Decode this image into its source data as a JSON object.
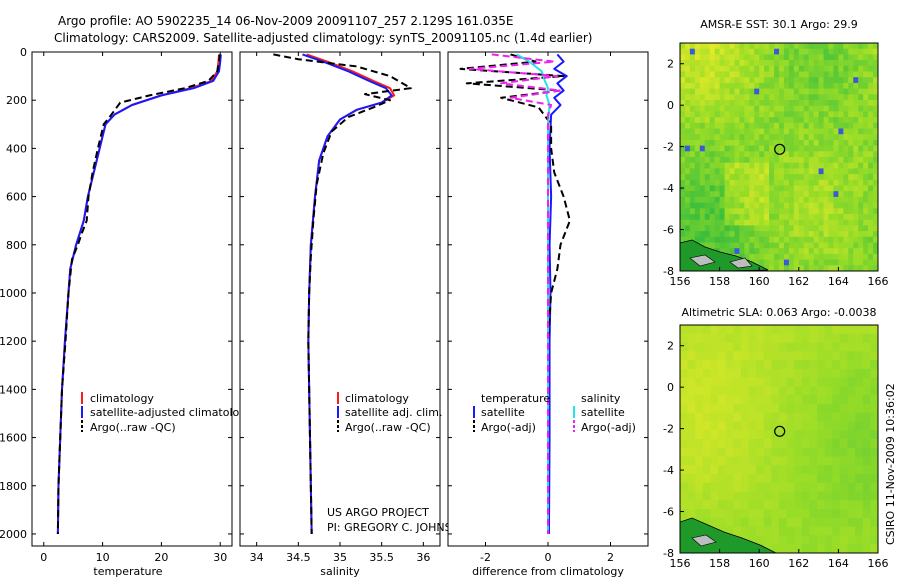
{
  "header": {
    "line1": "Argo profile: AO 5902235_14 06-Nov-2009 20091107_257 2.129S 161.035E",
    "line2": "Climatology: CARS2009. Satellite-adjusted climatology: synTS_20091105.nc (1.4d earlier)"
  },
  "credit": {
    "project": "US ARGO PROJECT",
    "pi": "PI: GREGORY C. JOHNSON",
    "stamp": "CSIRO 11-Nov-2009 10:36:02"
  },
  "colors": {
    "climatology": "#ff1a1a",
    "satellite": "#1a1aff",
    "argo": "#000000",
    "temp_satellite": "#1a1aff",
    "sal_satellite": "#22e6e6",
    "sal_argo": "#ee22ee"
  },
  "chart_data": [
    {
      "type": "line",
      "name": "temperature-profile",
      "xlabel": "temperature",
      "ylabel": "",
      "xlim": [
        -2,
        32
      ],
      "ylim": [
        2050,
        0
      ],
      "xticks": [
        0,
        10,
        20,
        30
      ],
      "yticks": [
        0,
        200,
        400,
        600,
        800,
        1000,
        1200,
        1400,
        1600,
        1800,
        2000
      ],
      "legend": [
        "climatology",
        "satellite-adjusted climatology",
        "Argo(..raw -QC)"
      ],
      "legend_position": "lower-center",
      "series": [
        {
          "name": "climatology",
          "color": "#ff1a1a",
          "dash": "",
          "x": [
            29.8,
            29.7,
            29.5,
            28.5,
            25,
            20,
            15,
            12,
            10.5,
            9.5,
            8.5,
            7.5,
            6.8,
            5.5,
            4.5,
            4.2,
            3.6,
            3.1,
            2.8,
            2.5,
            2.4
          ],
          "y": [
            10,
            40,
            80,
            120,
            150,
            180,
            220,
            260,
            300,
            400,
            500,
            600,
            700,
            800,
            900,
            1000,
            1200,
            1400,
            1600,
            1800,
            2000
          ]
        },
        {
          "name": "satellite-adjusted climatology",
          "color": "#1a1aff",
          "dash": "",
          "x": [
            30.1,
            30.0,
            29.8,
            28.8,
            25.5,
            20,
            15,
            12,
            10.5,
            9.5,
            8.5,
            7.5,
            6.8,
            5.5,
            4.5,
            4.2,
            3.6,
            3.1,
            2.8,
            2.5,
            2.4
          ],
          "y": [
            10,
            40,
            80,
            120,
            150,
            180,
            220,
            260,
            300,
            400,
            500,
            600,
            700,
            800,
            900,
            1000,
            1200,
            1400,
            1600,
            1800,
            2000
          ]
        },
        {
          "name": "Argo(..raw -QC)",
          "color": "#000000",
          "dash": "7,4",
          "x": [
            29.9,
            29.8,
            29.5,
            28,
            24,
            18,
            13,
            11.5,
            10.2,
            9.2,
            8.3,
            7.6,
            7.3,
            6.5,
            5.8,
            4.8,
            4.2,
            3.7,
            3.1,
            2.8,
            2.5,
            2.4
          ],
          "y": [
            10,
            40,
            80,
            120,
            150,
            180,
            210,
            260,
            300,
            400,
            500,
            600,
            700,
            750,
            800,
            860,
            1000,
            1200,
            1400,
            1600,
            1800,
            2000
          ]
        }
      ]
    },
    {
      "type": "line",
      "name": "salinity-profile",
      "xlabel": "salinity",
      "ylabel": "",
      "xlim": [
        33.8,
        36.2
      ],
      "ylim": [
        2050,
        0
      ],
      "xticks": [
        34,
        34.5,
        35,
        35.5,
        36
      ],
      "yticks": [
        0,
        200,
        400,
        600,
        800,
        1000,
        1200,
        1400,
        1600,
        1800,
        2000
      ],
      "legend": [
        "climatology",
        "satellite adj. clim.",
        "Argo(..raw -QC)"
      ],
      "legend_position": "lower-center",
      "series": [
        {
          "name": "climatology",
          "color": "#ff1a1a",
          "dash": "",
          "x": [
            34.6,
            34.85,
            35.15,
            35.4,
            35.6,
            35.65,
            35.5,
            35.2,
            35.0,
            34.85,
            34.75,
            34.7,
            34.65,
            34.63,
            34.62,
            34.63,
            34.64,
            34.65,
            34.66
          ],
          "y": [
            10,
            40,
            80,
            120,
            150,
            180,
            210,
            240,
            280,
            350,
            450,
            600,
            800,
            1000,
            1200,
            1400,
            1600,
            1800,
            2000
          ]
        },
        {
          "name": "satellite adj. clim.",
          "color": "#1a1aff",
          "dash": "",
          "x": [
            34.55,
            34.8,
            35.1,
            35.35,
            35.55,
            35.62,
            35.5,
            35.2,
            35.0,
            34.85,
            34.75,
            34.7,
            34.65,
            34.63,
            34.62,
            34.63,
            34.64,
            34.65,
            34.66
          ],
          "y": [
            10,
            40,
            80,
            120,
            150,
            180,
            210,
            240,
            280,
            350,
            450,
            600,
            800,
            1000,
            1200,
            1400,
            1600,
            1800,
            2000
          ]
        },
        {
          "name": "Argo(..raw -QC)",
          "color": "#000000",
          "dash": "7,4",
          "x": [
            34.2,
            34.5,
            35.2,
            35.6,
            35.85,
            35.3,
            35.6,
            35.4,
            35.1,
            34.9,
            34.8,
            34.72,
            34.68,
            34.65,
            34.63,
            34.62,
            34.63,
            34.64,
            34.65,
            34.66
          ],
          "y": [
            10,
            30,
            60,
            100,
            150,
            175,
            200,
            230,
            270,
            330,
            420,
            550,
            700,
            850,
            1000,
            1200,
            1400,
            1600,
            1800,
            2000
          ]
        }
      ]
    },
    {
      "type": "line",
      "name": "difference-profile",
      "xlabel": "difference from climatology",
      "ylabel": "",
      "xlim": [
        -3.2,
        3.2
      ],
      "ylim": [
        2050,
        0
      ],
      "xticks": [
        -2,
        0,
        2
      ],
      "yticks": [
        0,
        200,
        400,
        600,
        800,
        1000,
        1200,
        1400,
        1600,
        1800,
        2000
      ],
      "legend_groups": [
        {
          "title": "temperature",
          "items": [
            "satellite",
            "Argo(-adj)"
          ]
        },
        {
          "title": "salinity",
          "items": [
            "satellite",
            "Argo(-adj)"
          ]
        }
      ],
      "legend_position": "lower-center",
      "series": [
        {
          "name": "temperature satellite",
          "color": "#1a1aff",
          "dash": "",
          "x": [
            0.3,
            0.5,
            0.2,
            0.6,
            0.3,
            0.5,
            0.2,
            0.4,
            0.1,
            0.05,
            0.1,
            0.05,
            0.08,
            0.05,
            0.05,
            0.05,
            0.04,
            0.03
          ],
          "y": [
            10,
            40,
            70,
            100,
            130,
            160,
            190,
            220,
            260,
            400,
            600,
            800,
            1000,
            1200,
            1400,
            1600,
            1800,
            2000
          ]
        },
        {
          "name": "temperature Argo(-adj)",
          "color": "#000000",
          "dash": "7,4",
          "x": [
            -1.2,
            -0.4,
            -2.8,
            0.5,
            -2.6,
            0.4,
            -1.5,
            -0.3,
            0.1,
            0.1,
            0.2,
            0.5,
            0.7,
            0.4,
            0.3,
            0.1,
            0.0,
            0.0,
            0.0,
            0.0
          ],
          "y": [
            10,
            40,
            70,
            100,
            130,
            160,
            190,
            230,
            300,
            400,
            500,
            600,
            700,
            800,
            900,
            1000,
            1200,
            1500,
            1800,
            2000
          ]
        },
        {
          "name": "salinity satellite",
          "color": "#22e6e6",
          "dash": "",
          "x": [
            -1.0,
            -0.6,
            -0.2,
            -0.1,
            0.0,
            -0.05,
            0.05,
            0.0,
            0.0,
            0.0,
            0.0,
            0.0,
            0.0,
            0.0,
            0.0,
            0.0,
            0.0,
            0.0,
            0.0
          ],
          "y": [
            10,
            40,
            80,
            120,
            150,
            180,
            220,
            300,
            400,
            600,
            800,
            1000,
            1200,
            1400,
            1600,
            1700,
            1800,
            1900,
            2000
          ]
        },
        {
          "name": "salinity Argo(-adj)",
          "color": "#ee22ee",
          "dash": "7,4",
          "x": [
            -1.8,
            0.2,
            -2.5,
            0.3,
            -1.5,
            0.4,
            -1.2,
            0.1,
            0.0,
            0.0,
            0.0,
            0.0,
            0.0,
            0.0,
            0.0,
            0.0
          ],
          "y": [
            10,
            40,
            70,
            100,
            130,
            160,
            190,
            220,
            260,
            400,
            600,
            800,
            1000,
            1400,
            1800,
            2000
          ]
        }
      ]
    },
    {
      "type": "heatmap",
      "name": "sst-map",
      "title": "AMSR-E SST: 30.1  Argo: 29.9",
      "xlim": [
        156,
        166
      ],
      "ylim": [
        -8,
        3
      ],
      "xticks": [
        156,
        158,
        160,
        162,
        164,
        166
      ],
      "yticks": [
        -8,
        -6,
        -4,
        -2,
        0,
        2
      ],
      "marker": {
        "lon": 161.035,
        "lat": -2.129
      }
    },
    {
      "type": "heatmap",
      "name": "sla-map",
      "title": "Altimetric SLA: 0.063  Argo: -0.0038",
      "xlim": [
        156,
        166
      ],
      "ylim": [
        -8,
        3
      ],
      "xticks": [
        156,
        158,
        160,
        162,
        164,
        166
      ],
      "yticks": [
        -8,
        -6,
        -4,
        -2,
        0,
        2
      ],
      "marker": {
        "lon": 161.035,
        "lat": -2.129
      }
    }
  ]
}
